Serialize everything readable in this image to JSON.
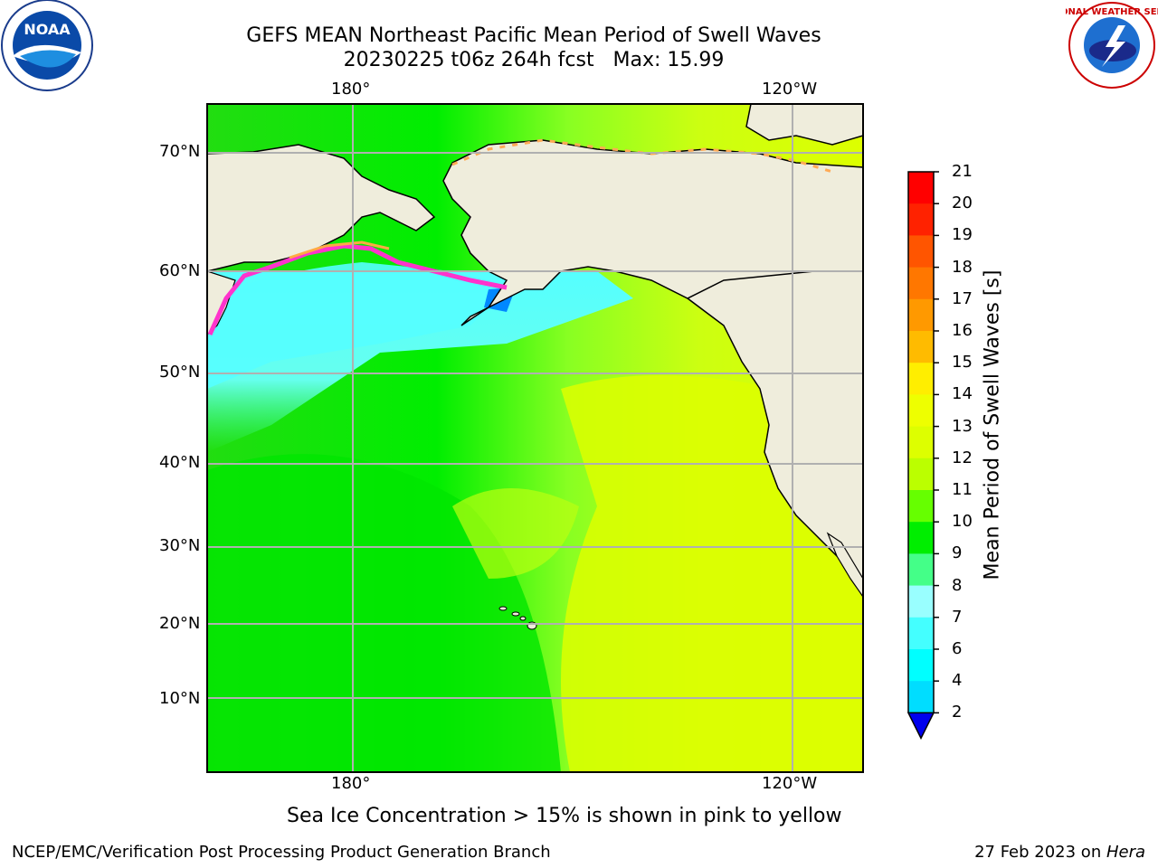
{
  "header": {
    "title_line1": "GEFS MEAN Northeast Pacific Mean Period of Swell Waves",
    "title_line2": "20230225 t06z 264h fcst   Max: 15.99",
    "logo_left_text": "NOAA",
    "logo_right_text": "NATIONAL WEATHER SERVICE"
  },
  "map": {
    "lon_labels": [
      "180°",
      "120°W"
    ],
    "lat_labels": [
      "70°N",
      "60°N",
      "50°N",
      "40°N",
      "30°N",
      "20°N",
      "10°N"
    ],
    "colors": {
      "land": "#efeddc",
      "ocean_north": "#4dffff",
      "ocean_mid": "#00ee00",
      "ocean_east": "#ccff00",
      "ice_edge": "#ff33cc",
      "grid": "#b0b0b0"
    }
  },
  "colorbar": {
    "label": "Mean Period of Swell Waves [s]",
    "ticks": [
      "21",
      "20",
      "19",
      "18",
      "17",
      "16",
      "15",
      "14",
      "13",
      "12",
      "11",
      "10",
      "9",
      "8",
      "7",
      "6",
      "4",
      "2"
    ],
    "colors": [
      "#ff0000",
      "#ff2200",
      "#ff5500",
      "#ff7700",
      "#ff9900",
      "#ffbb00",
      "#ffee00",
      "#eeff00",
      "#ddff00",
      "#bbff00",
      "#66ff00",
      "#00ee00",
      "#44ff88",
      "#99ffff",
      "#44ffff",
      "#00ffff",
      "#00ddff",
      "#0077ff",
      "#0000ee"
    ]
  },
  "footer": {
    "ice_note": "Sea Ice Concentration > 15% is shown in pink to yellow",
    "credit": "NCEP/EMC/Verification Post Processing Product Generation Branch",
    "date": "27 Feb 2023 on ",
    "machine": "Hera"
  }
}
